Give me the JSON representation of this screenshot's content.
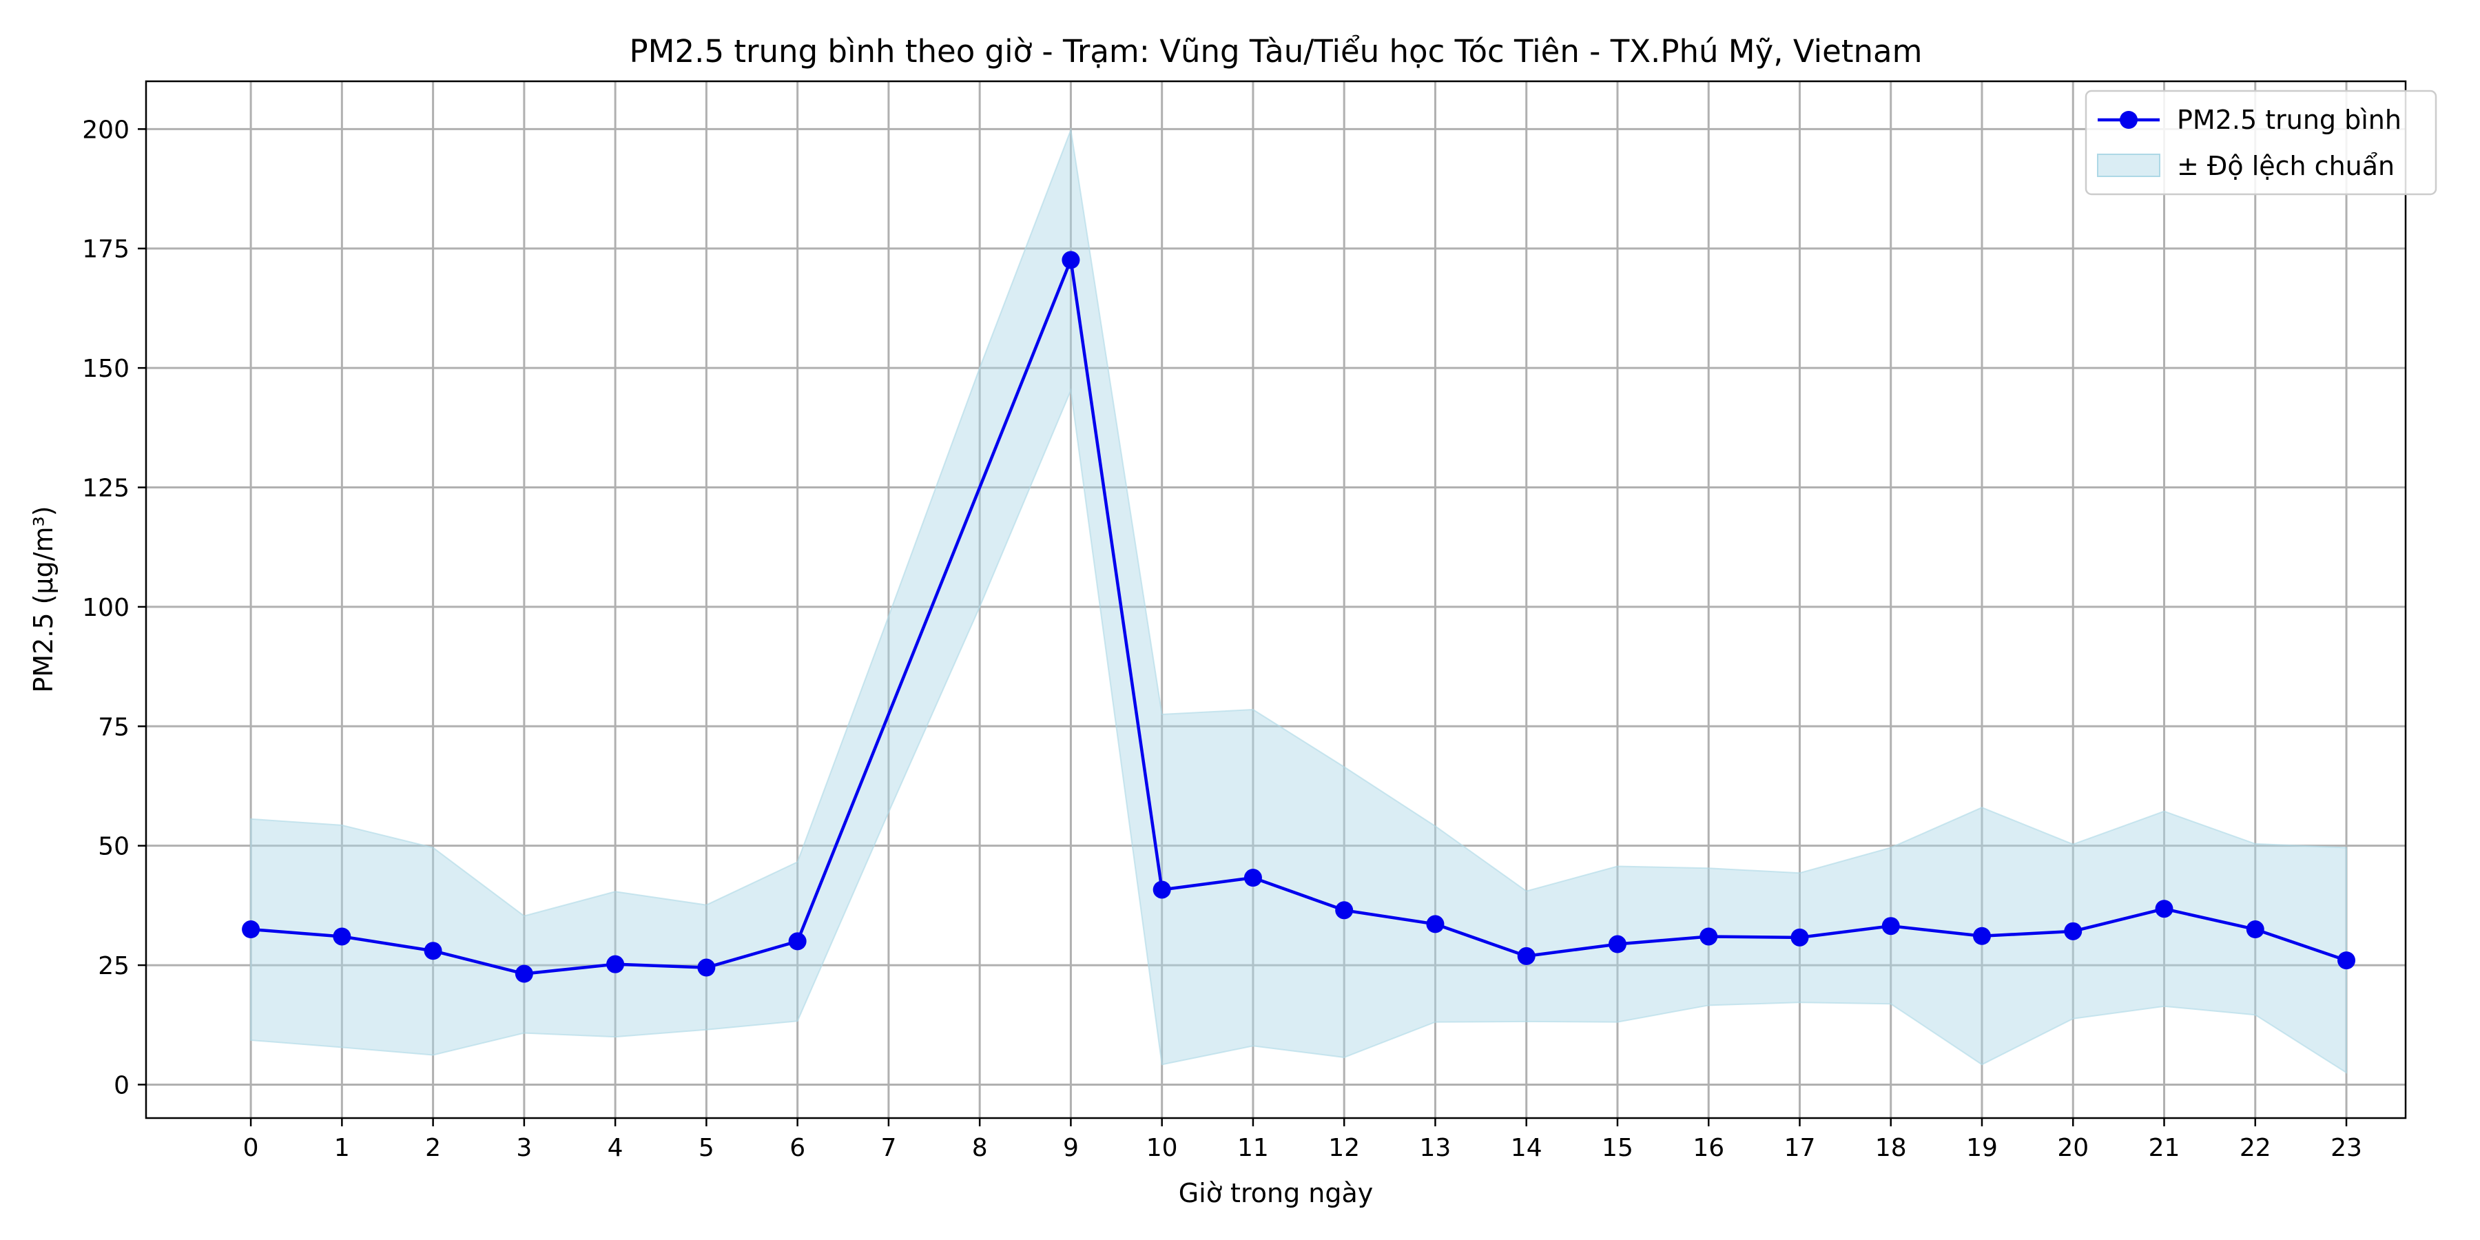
{
  "chart_data": {
    "type": "line",
    "title": "PM2.5 trung bình theo giờ - Trạm: Vũng Tàu/Tiểu học Tóc Tiên - TX.Phú Mỹ, Vietnam",
    "xlabel": "Giờ trong ngày",
    "ylabel": "PM2.5 (µg/m³)",
    "x": [
      0,
      1,
      2,
      3,
      4,
      5,
      6,
      7,
      8,
      9,
      10,
      11,
      12,
      13,
      14,
      15,
      16,
      17,
      18,
      19,
      20,
      21,
      22,
      23
    ],
    "marker_x": [
      0,
      1,
      2,
      3,
      4,
      5,
      6,
      9,
      10,
      11,
      12,
      13,
      14,
      15,
      16,
      17,
      18,
      19,
      20,
      21,
      22,
      23
    ],
    "xticks": [
      0,
      1,
      2,
      3,
      4,
      5,
      6,
      7,
      8,
      9,
      10,
      11,
      12,
      13,
      14,
      15,
      16,
      17,
      18,
      19,
      20,
      21,
      22,
      23
    ],
    "yticks": [
      0,
      25,
      50,
      75,
      100,
      125,
      150,
      175,
      200
    ],
    "xlim": [
      -1.15,
      23.65
    ],
    "ylim": [
      -7,
      210
    ],
    "grid": true,
    "legend_position": "top-right",
    "series": [
      {
        "name": "PM2.5 trung bình",
        "kind": "line-markers",
        "color": "#0000ee",
        "values": [
          32.5,
          31,
          28,
          23.2,
          25.2,
          24.5,
          30,
          77.5,
          125,
          172.6,
          40.8,
          43.3,
          36.5,
          33.6,
          26.9,
          29.4,
          31,
          30.8,
          33.2,
          31.1,
          32.1,
          36.8,
          32.5,
          26
        ]
      },
      {
        "name": "± Độ lệch chuẩn",
        "kind": "band",
        "color": "#add8e6",
        "upper": [
          55.6,
          54.3,
          49.6,
          35.3,
          40.4,
          37.6,
          46.6,
          98,
          150,
          199.8,
          77.5,
          78.5,
          66.5,
          54.1,
          40.5,
          45.7,
          45.3,
          44.3,
          49.6,
          58,
          50.3,
          57.2,
          50.4,
          49.6
        ],
        "lower": [
          9.3,
          7.8,
          6.2,
          10.8,
          10,
          11.5,
          13.3,
          57,
          100,
          145.3,
          4.2,
          8.1,
          5.7,
          13.1,
          13.2,
          13.1,
          16.6,
          17.2,
          16.9,
          4.2,
          13.8,
          16.4,
          14.6,
          2.5
        ]
      }
    ]
  }
}
